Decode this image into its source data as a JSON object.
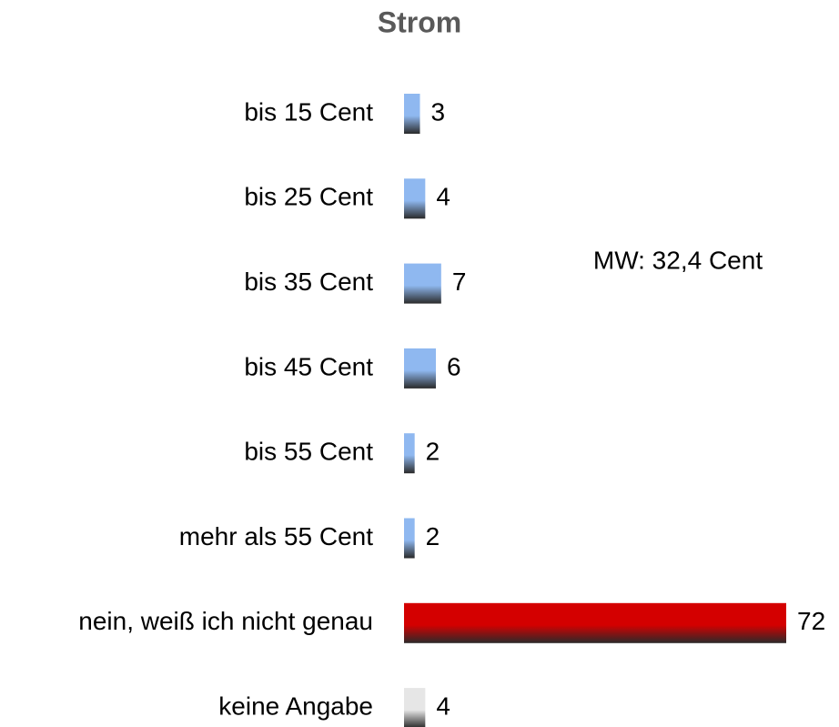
{
  "chart_data": {
    "type": "barh",
    "title": "Strom",
    "categories": [
      "bis 15 Cent",
      "bis 25 Cent",
      "bis 35 Cent",
      "bis 45 Cent",
      "bis 55 Cent",
      "mehr als 55 Cent",
      "nein, weiß ich nicht genau",
      "keine Angabe"
    ],
    "values": [
      3,
      4,
      7,
      6,
      2,
      2,
      72,
      4
    ],
    "colors": [
      "#8fb8f0",
      "#8fb8f0",
      "#8fb8f0",
      "#8fb8f0",
      "#8fb8f0",
      "#8fb8f0",
      "#d40000",
      "#e6e6e6"
    ],
    "annotation": "MW: 32,4 Cent"
  }
}
